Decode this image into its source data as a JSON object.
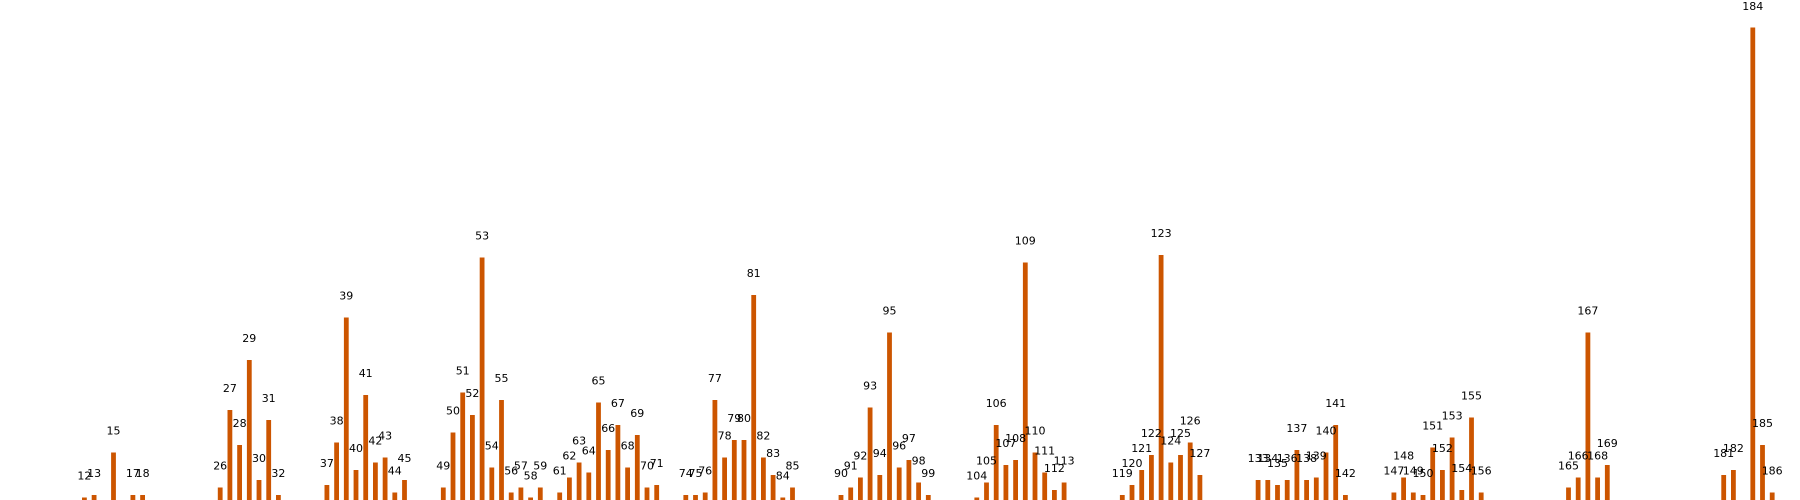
{
  "colors": {
    "bar": "#cc5500",
    "background": "#ffffff",
    "label": "#000000"
  },
  "chart_data": {
    "type": "bar",
    "title": "",
    "xlabel": "",
    "ylabel": "",
    "axes_visible": false,
    "grid": false,
    "ylim": [
      0,
      190
    ],
    "bars": [
      {
        "x": 12,
        "label": "12",
        "value": 1
      },
      {
        "x": 13,
        "label": "13",
        "value": 2
      },
      {
        "x": 15,
        "label": "15",
        "value": 19
      },
      {
        "x": 17,
        "label": "17",
        "value": 2
      },
      {
        "x": 18,
        "label": "18",
        "value": 2
      },
      {
        "x": 26,
        "label": "26",
        "value": 5
      },
      {
        "x": 27,
        "label": "27",
        "value": 36
      },
      {
        "x": 28,
        "label": "28",
        "value": 22
      },
      {
        "x": 29,
        "label": "29",
        "value": 56
      },
      {
        "x": 30,
        "label": "30",
        "value": 8
      },
      {
        "x": 31,
        "label": "31",
        "value": 32
      },
      {
        "x": 32,
        "label": "32",
        "value": 2
      },
      {
        "x": 37,
        "label": "37",
        "value": 6
      },
      {
        "x": 38,
        "label": "38",
        "value": 23
      },
      {
        "x": 39,
        "label": "39",
        "value": 73
      },
      {
        "x": 40,
        "label": "40",
        "value": 12
      },
      {
        "x": 41,
        "label": "41",
        "value": 42
      },
      {
        "x": 42,
        "label": "42",
        "value": 15
      },
      {
        "x": 43,
        "label": "43",
        "value": 17
      },
      {
        "x": 44,
        "label": "44",
        "value": 3
      },
      {
        "x": 45,
        "label": "45",
        "value": 8
      },
      {
        "x": 49,
        "label": "49",
        "value": 5
      },
      {
        "x": 50,
        "label": "50",
        "value": 27
      },
      {
        "x": 51,
        "label": "51",
        "value": 43
      },
      {
        "x": 52,
        "label": "52",
        "value": 34
      },
      {
        "x": 53,
        "label": "53",
        "value": 97
      },
      {
        "x": 54,
        "label": "54",
        "value": 13
      },
      {
        "x": 55,
        "label": "55",
        "value": 40
      },
      {
        "x": 56,
        "label": "56",
        "value": 3
      },
      {
        "x": 57,
        "label": "57",
        "value": 5
      },
      {
        "x": 58,
        "label": "58",
        "value": 1
      },
      {
        "x": 59,
        "label": "59",
        "value": 5
      },
      {
        "x": 61,
        "label": "61",
        "value": 3
      },
      {
        "x": 62,
        "label": "62",
        "value": 9
      },
      {
        "x": 63,
        "label": "63",
        "value": 15
      },
      {
        "x": 64,
        "label": "64",
        "value": 11
      },
      {
        "x": 65,
        "label": "65",
        "value": 39
      },
      {
        "x": 66,
        "label": "66",
        "value": 20
      },
      {
        "x": 67,
        "label": "67",
        "value": 30
      },
      {
        "x": 68,
        "label": "68",
        "value": 13
      },
      {
        "x": 69,
        "label": "69",
        "value": 26
      },
      {
        "x": 70,
        "label": "70",
        "value": 5
      },
      {
        "x": 71,
        "label": "71",
        "value": 6
      },
      {
        "x": 74,
        "label": "74",
        "value": 2
      },
      {
        "x": 75,
        "label": "75",
        "value": 2
      },
      {
        "x": 76,
        "label": "76",
        "value": 3
      },
      {
        "x": 77,
        "label": "77",
        "value": 40
      },
      {
        "x": 78,
        "label": "78",
        "value": 17
      },
      {
        "x": 79,
        "label": "79",
        "value": 24
      },
      {
        "x": 80,
        "label": "80",
        "value": 24
      },
      {
        "x": 81,
        "label": "81",
        "value": 82
      },
      {
        "x": 82,
        "label": "82",
        "value": 17
      },
      {
        "x": 83,
        "label": "83",
        "value": 10
      },
      {
        "x": 84,
        "label": "84",
        "value": 1
      },
      {
        "x": 85,
        "label": "85",
        "value": 5
      },
      {
        "x": 90,
        "label": "90",
        "value": 2
      },
      {
        "x": 91,
        "label": "91",
        "value": 5
      },
      {
        "x": 92,
        "label": "92",
        "value": 9
      },
      {
        "x": 93,
        "label": "93",
        "value": 37
      },
      {
        "x": 94,
        "label": "94",
        "value": 10
      },
      {
        "x": 95,
        "label": "95",
        "value": 67
      },
      {
        "x": 96,
        "label": "96",
        "value": 13
      },
      {
        "x": 97,
        "label": "97",
        "value": 16
      },
      {
        "x": 98,
        "label": "98",
        "value": 7
      },
      {
        "x": 99,
        "label": "99",
        "value": 2
      },
      {
        "x": 104,
        "label": "104",
        "value": 1
      },
      {
        "x": 105,
        "label": "105",
        "value": 7
      },
      {
        "x": 106,
        "label": "106",
        "value": 30
      },
      {
        "x": 107,
        "label": "107",
        "value": 14
      },
      {
        "x": 108,
        "label": "108",
        "value": 16
      },
      {
        "x": 109,
        "label": "109",
        "value": 95
      },
      {
        "x": 110,
        "label": "110",
        "value": 19
      },
      {
        "x": 111,
        "label": "111",
        "value": 11
      },
      {
        "x": 112,
        "label": "112",
        "value": 4
      },
      {
        "x": 113,
        "label": "113",
        "value": 7
      },
      {
        "x": 119,
        "label": "119",
        "value": 2
      },
      {
        "x": 120,
        "label": "120",
        "value": 6
      },
      {
        "x": 121,
        "label": "121",
        "value": 12
      },
      {
        "x": 122,
        "label": "122",
        "value": 18
      },
      {
        "x": 123,
        "label": "123",
        "value": 98
      },
      {
        "x": 124,
        "label": "124",
        "value": 15
      },
      {
        "x": 125,
        "label": "125",
        "value": 18
      },
      {
        "x": 126,
        "label": "126",
        "value": 23
      },
      {
        "x": 127,
        "label": "127",
        "value": 10
      },
      {
        "x": 133,
        "label": "133",
        "value": 8
      },
      {
        "x": 134,
        "label": "134",
        "value": 8
      },
      {
        "x": 135,
        "label": "135",
        "value": 6
      },
      {
        "x": 136,
        "label": "136",
        "value": 8
      },
      {
        "x": 137,
        "label": "137",
        "value": 20
      },
      {
        "x": 138,
        "label": "138",
        "value": 8
      },
      {
        "x": 139,
        "label": "139",
        "value": 9
      },
      {
        "x": 140,
        "label": "140",
        "value": 19
      },
      {
        "x": 141,
        "label": "141",
        "value": 30
      },
      {
        "x": 142,
        "label": "142",
        "value": 2
      },
      {
        "x": 147,
        "label": "147",
        "value": 3
      },
      {
        "x": 148,
        "label": "148",
        "value": 9
      },
      {
        "x": 149,
        "label": "149",
        "value": 3
      },
      {
        "x": 150,
        "label": "150",
        "value": 2
      },
      {
        "x": 151,
        "label": "151",
        "value": 21
      },
      {
        "x": 152,
        "label": "152",
        "value": 12
      },
      {
        "x": 153,
        "label": "153",
        "value": 25
      },
      {
        "x": 154,
        "label": "154",
        "value": 4
      },
      {
        "x": 155,
        "label": "155",
        "value": 33
      },
      {
        "x": 156,
        "label": "156",
        "value": 3
      },
      {
        "x": 165,
        "label": "165",
        "value": 5
      },
      {
        "x": 166,
        "label": "166",
        "value": 9
      },
      {
        "x": 167,
        "label": "167",
        "value": 67
      },
      {
        "x": 168,
        "label": "168",
        "value": 9
      },
      {
        "x": 169,
        "label": "169",
        "value": 14
      },
      {
        "x": 181,
        "label": "181",
        "value": 10
      },
      {
        "x": 182,
        "label": "182",
        "value": 12
      },
      {
        "x": 184,
        "label": "184",
        "value": 189
      },
      {
        "x": 185,
        "label": "185",
        "value": 22
      },
      {
        "x": 186,
        "label": "186",
        "value": 3
      }
    ]
  }
}
